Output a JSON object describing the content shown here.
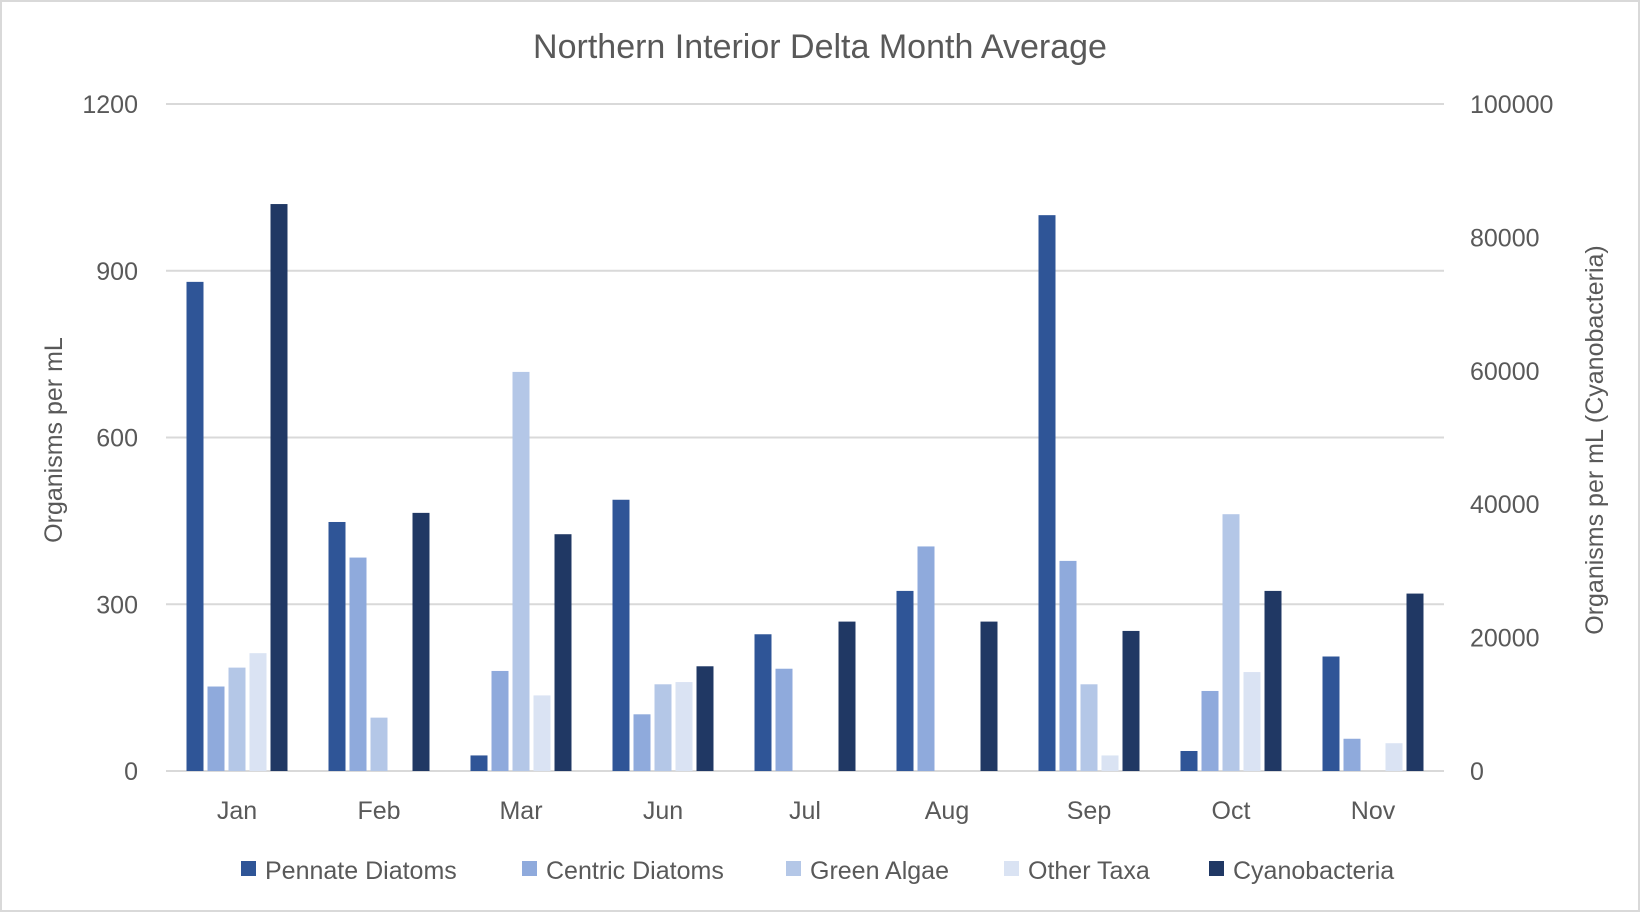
{
  "chart_data": {
    "type": "bar",
    "title": "Northern Interior Delta Month Average",
    "categories": [
      "Jan",
      "Feb",
      "Mar",
      "Jun",
      "Jul",
      "Aug",
      "Sep",
      "Oct",
      "Nov"
    ],
    "ylabel": "Organisms per mL",
    "y2label": "Organisms per mL (Cyanobacteria)",
    "ylim": [
      0,
      1200
    ],
    "y2lim": [
      0,
      100000
    ],
    "yticks": [
      "0",
      "300",
      "600",
      "900",
      "1200"
    ],
    "y2ticks": [
      "0",
      "20000",
      "40000",
      "60000",
      "80000",
      "100000"
    ],
    "grid": true,
    "legend_position": "bottom",
    "series": [
      {
        "name": "Pennate Diatoms",
        "axis": "left",
        "color": "#2F5597",
        "values": [
          880,
          448,
          28,
          488,
          246,
          324,
          1000,
          36,
          206
        ]
      },
      {
        "name": "Centric Diatoms",
        "axis": "left",
        "color": "#8FAADC",
        "values": [
          152,
          384,
          180,
          102,
          184,
          404,
          378,
          144,
          58
        ]
      },
      {
        "name": "Green Algae",
        "axis": "left",
        "color": "#B4C7E7",
        "values": [
          186,
          96,
          718,
          156,
          0,
          0,
          156,
          462,
          0
        ]
      },
      {
        "name": "Other Taxa",
        "axis": "left",
        "color": "#DAE3F3",
        "values": [
          212,
          0,
          136,
          160,
          0,
          0,
          28,
          178,
          50
        ]
      },
      {
        "name": "Cyanobacteria",
        "axis": "right",
        "color": "#203864",
        "values": [
          85000,
          38700,
          35500,
          15700,
          22400,
          22400,
          21000,
          27000,
          26600
        ]
      }
    ]
  }
}
